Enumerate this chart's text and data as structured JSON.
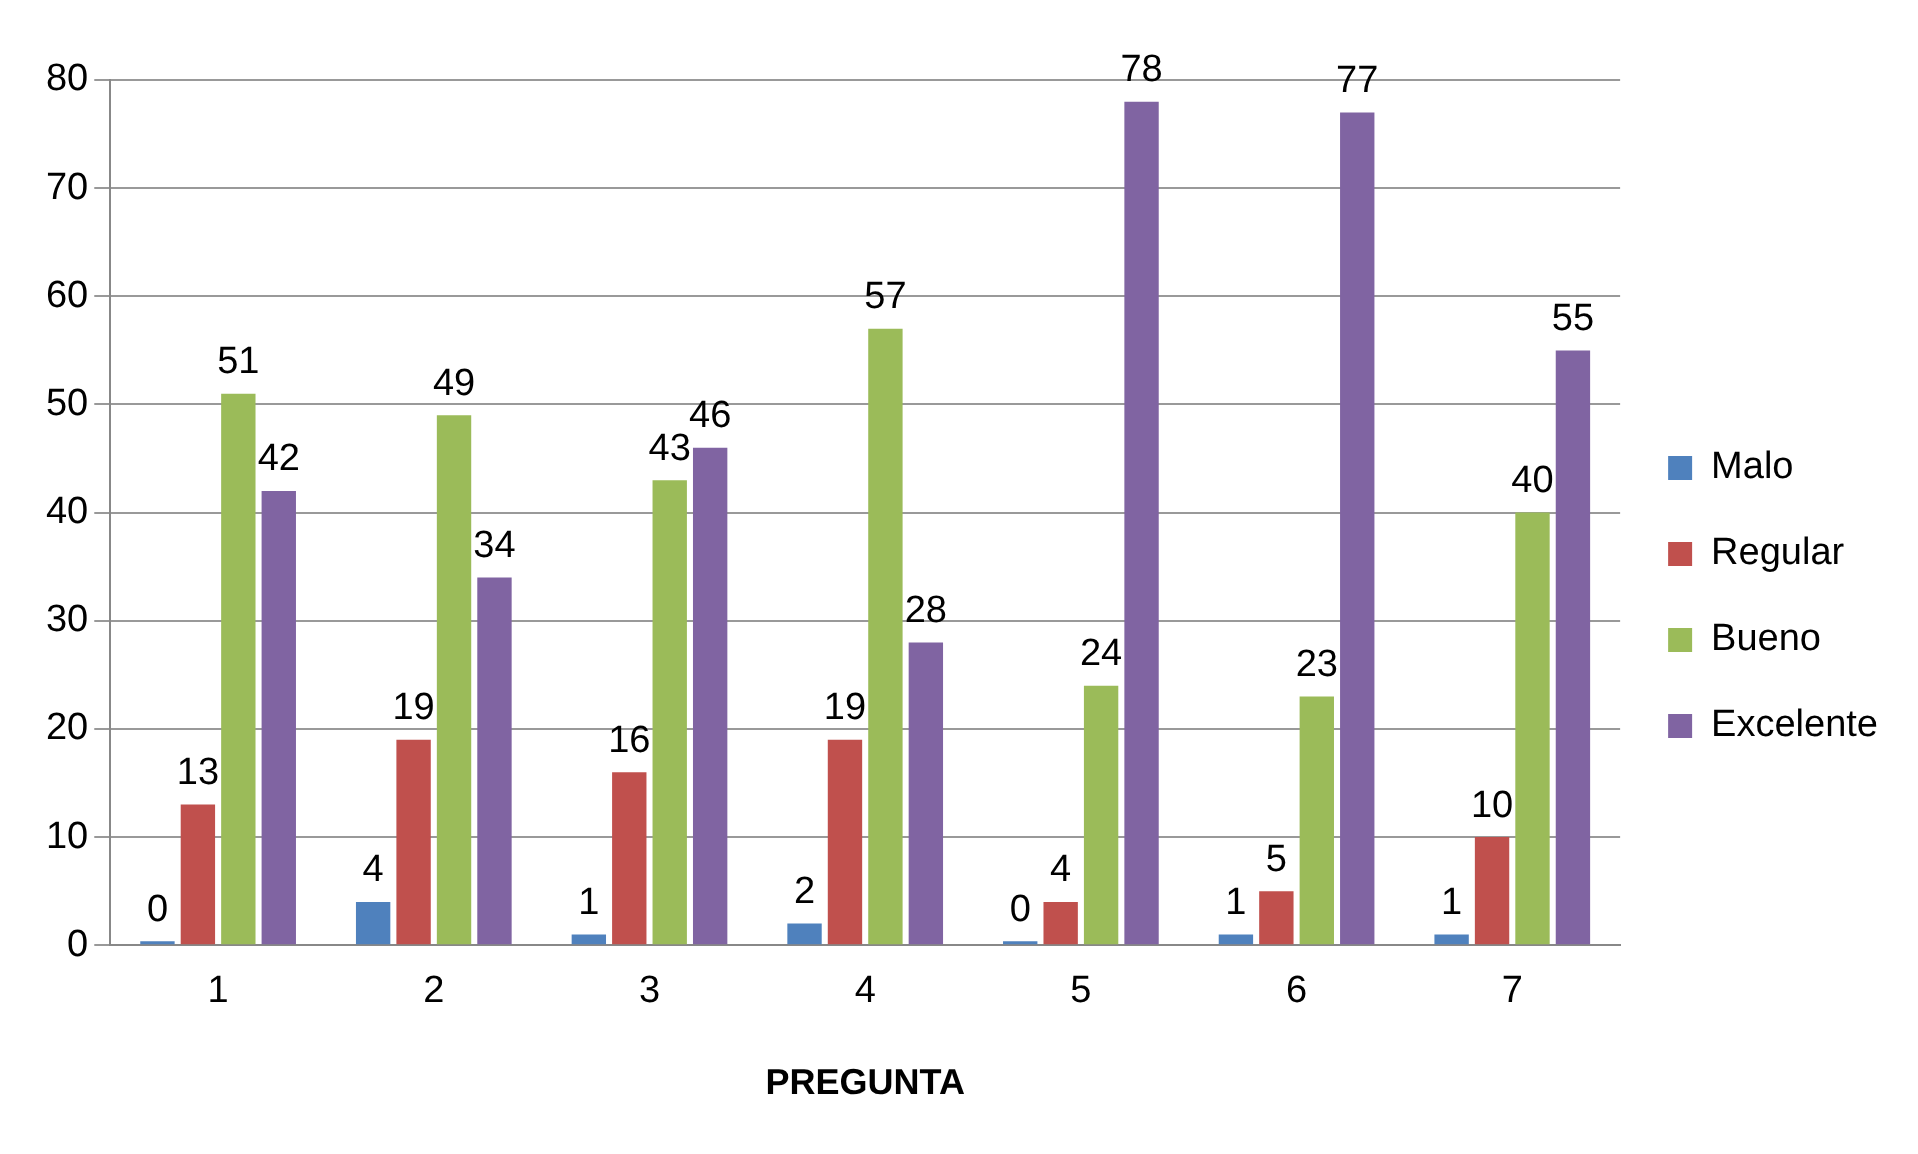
{
  "chart_data": {
    "type": "bar",
    "xlabel": "PREGUNTA",
    "categories": [
      "1",
      "2",
      "3",
      "4",
      "5",
      "6",
      "7"
    ],
    "series": [
      {
        "name": "Malo",
        "color": "#4f81bd",
        "values": [
          0,
          4,
          1,
          2,
          0,
          1,
          1
        ]
      },
      {
        "name": "Regular",
        "color": "#c0504d",
        "values": [
          13,
          19,
          16,
          19,
          4,
          5,
          10
        ]
      },
      {
        "name": "Bueno",
        "color": "#9bbb59",
        "values": [
          51,
          49,
          43,
          57,
          24,
          23,
          40
        ]
      },
      {
        "name": "Excelente",
        "color": "#8064a2",
        "values": [
          42,
          34,
          46,
          28,
          78,
          77,
          55
        ]
      }
    ],
    "ylim": [
      0,
      80
    ],
    "yticks": [
      0,
      10,
      20,
      30,
      40,
      50,
      60,
      70,
      80
    ],
    "grid": "y",
    "legend": "right",
    "data_labels": true
  }
}
